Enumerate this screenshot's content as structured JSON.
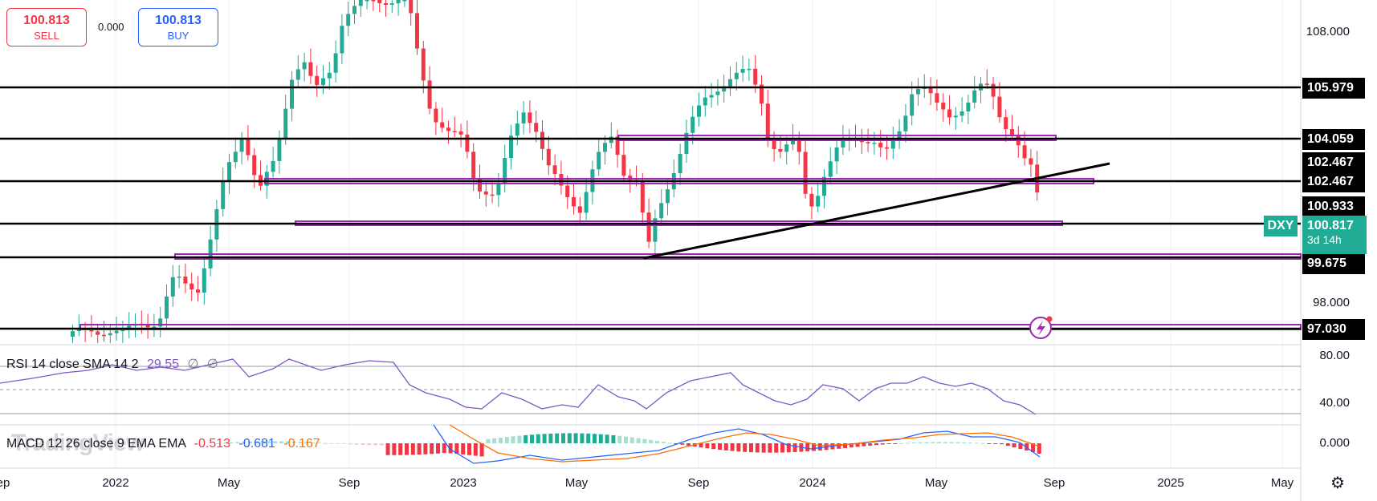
{
  "trade": {
    "sell_price": "100.813",
    "sell_label": "SELL",
    "spread": "0.000",
    "buy_price": "100.813",
    "buy_label": "BUY"
  },
  "price_axis": {
    "ticks": [
      "108.000",
      "98.000"
    ],
    "tags": [
      "105.979",
      "104.059",
      "102.467",
      "102.467",
      "100.933",
      "99.675",
      "97.030"
    ]
  },
  "symbol": {
    "name": "DXY",
    "price": "100.817",
    "countdown": "3d 14h"
  },
  "rsi": {
    "label": "RSI 14 close SMA 14 2",
    "value": "29.55",
    "extra1": "∅",
    "extra2": "∅",
    "axis": [
      "80.00",
      "40.00"
    ]
  },
  "macd": {
    "label": "MACD 12 26 close 9 EMA EMA",
    "hist": "-0.513",
    "macd": "-0.681",
    "signal": "-0.167",
    "axis": [
      "0.000"
    ]
  },
  "watermark": "TradingView",
  "time_axis": [
    "ep",
    "2022",
    "May",
    "Sep",
    "2023",
    "May",
    "Sep",
    "2024",
    "May",
    "Sep",
    "2025",
    "May"
  ],
  "colors": {
    "up": "#22ab94",
    "down": "#f23645",
    "level": "#000000",
    "zone": "#9c27b0",
    "rsi": "#7e57c2",
    "macd": "#2962ff",
    "signal": "#ff6d00"
  },
  "icons": [
    "lightning-icon",
    "settings-icon"
  ]
}
